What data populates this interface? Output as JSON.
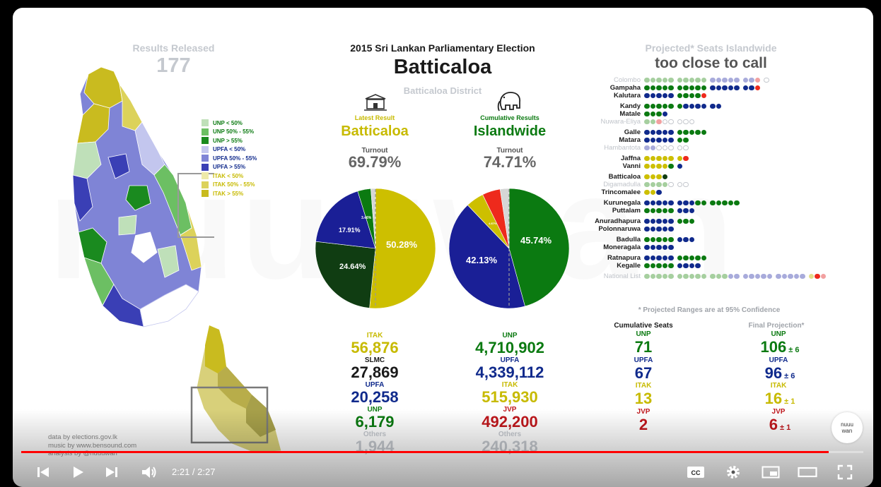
{
  "header": {
    "results_label": "Results Released",
    "results_count": "177",
    "title": "2015 Sri Lankan Parliamentary Election",
    "district": "Batticaloa",
    "district_sub": "Batticaloa District",
    "projected_label": "Projected* Seats Islandwide",
    "projected_status": "too close to call"
  },
  "legend": [
    {
      "label": "UNP < 50%",
      "color": "#bfe0b9",
      "text_color": "#0b7a11"
    },
    {
      "label": "UNP 50% - 55%",
      "color": "#6cbf63",
      "text_color": "#0b7a11"
    },
    {
      "label": "UNP > 55%",
      "color": "#1a8a1f",
      "text_color": "#0b7a11"
    },
    {
      "label": "UPFA < 50%",
      "color": "#c3c6ee",
      "text_color": "#102a8c"
    },
    {
      "label": "UPFA 50% - 55%",
      "color": "#7f84d6",
      "text_color": "#102a8c"
    },
    {
      "label": "UPFA > 55%",
      "color": "#3a3fb5",
      "text_color": "#102a8c"
    },
    {
      "label": "ITAK < 50%",
      "color": "#eeeaa9",
      "text_color": "#c7ba00"
    },
    {
      "label": "ITAK 50% - 55%",
      "color": "#dcd25a",
      "text_color": "#c7ba00"
    },
    {
      "label": "ITAK > 55%",
      "color": "#c9bb1f",
      "text_color": "#c7ba00"
    }
  ],
  "latest": {
    "caption": "Latest Result",
    "name": "Batticaloa",
    "turnout_label": "Turnout",
    "turnout": "69.79%",
    "pie_labels": [
      "50.28%",
      "24.64%",
      "17.91%",
      "3.46%"
    ],
    "slices": [
      {
        "party": "ITAK",
        "share": 50.28,
        "color": "#cdbf00"
      },
      {
        "party": "SLMC",
        "share": 24.64,
        "color": "#103d12"
      },
      {
        "party": "UPFA",
        "share": 17.91,
        "color": "#1a1f96"
      },
      {
        "party": "UNP",
        "share": 3.46,
        "color": "#0b7a11"
      },
      {
        "party": "Others",
        "share": 1.2,
        "color": "#d6d6d6"
      }
    ],
    "results": [
      {
        "party": "ITAK",
        "votes": "56,876",
        "cls": "c-itak"
      },
      {
        "party": "SLMC",
        "votes": "27,869",
        "cls": "c-dark"
      },
      {
        "party": "UPFA",
        "votes": "20,258",
        "cls": "c-upfa"
      },
      {
        "party": "UNP",
        "votes": "6,179",
        "cls": "c-unp"
      },
      {
        "party": "Others",
        "votes": "1,944",
        "cls": "grey"
      }
    ]
  },
  "cumulative": {
    "caption": "Cumulative Results",
    "name": "Islandwide",
    "turnout_label": "Turnout",
    "turnout": "74.71%",
    "pie_labels": [
      "45.74%",
      "42.13%",
      "4.87%"
    ],
    "slices": [
      {
        "party": "UNP",
        "share": 45.74,
        "color": "#0b7a11"
      },
      {
        "party": "UPFA",
        "share": 42.13,
        "color": "#1a1f96"
      },
      {
        "party": "ITAK",
        "share": 4.87,
        "color": "#cdbf00"
      },
      {
        "party": "JVP",
        "share": 4.87,
        "color": "#ee2a1c"
      },
      {
        "party": "Others",
        "share": 2.39,
        "color": "#d6d6d6"
      }
    ],
    "results": [
      {
        "party": "UNP",
        "votes": "4,710,902",
        "cls": "c-unp"
      },
      {
        "party": "UPFA",
        "votes": "4,339,112",
        "cls": "c-upfa"
      },
      {
        "party": "ITAK",
        "votes": "515,930",
        "cls": "c-itak"
      },
      {
        "party": "JVP",
        "votes": "492,200",
        "cls": "c-jvp"
      },
      {
        "party": "Others",
        "votes": "240,318",
        "cls": "grey"
      }
    ]
  },
  "seats": {
    "cumulative_label": "Cumulative Seats",
    "final_label": "Final Projection*",
    "rows": [
      {
        "party": "UNP",
        "seats": "71",
        "proj": "106",
        "pm": "± 6",
        "cls": "c-unp"
      },
      {
        "party": "UPFA",
        "seats": "67",
        "proj": "96",
        "pm": "± 6",
        "cls": "c-upfa"
      },
      {
        "party": "ITAK",
        "seats": "13",
        "proj": "16",
        "pm": "± 1",
        "cls": "c-itak"
      },
      {
        "party": "JVP",
        "seats": "2",
        "proj": "6",
        "pm": "± 1",
        "cls": "c-jvp"
      }
    ]
  },
  "districts": [
    {
      "name": "Colombo",
      "faded": true,
      "dots": "GGGGG GGGGG BBBBB BBp o"
    },
    {
      "name": "Gampaha",
      "dots": "GGGGG GGGGG BBBBB BBr"
    },
    {
      "name": "Kalutara",
      "dots": "BBBBB GGGGr"
    },
    {
      "gap": true
    },
    {
      "name": "Kandy",
      "dots": "GGGGG GBBBB BB"
    },
    {
      "name": "Matale",
      "dots": "GGGB"
    },
    {
      "name": "Nuwara-Eliya",
      "faded": true,
      "dots": "GGpoo ooo"
    },
    {
      "gap": true
    },
    {
      "name": "Galle",
      "dots": "BBBBB GGGGG"
    },
    {
      "name": "Matara",
      "dots": "BBBBB GG"
    },
    {
      "name": "Hambantota",
      "faded": true,
      "dots": "BBooo oo"
    },
    {
      "gap": true
    },
    {
      "name": "Jaffna",
      "dots": "YYYYY Yr"
    },
    {
      "name": "Vanni",
      "dots": "YYYYG B"
    },
    {
      "gap": true
    },
    {
      "name": "Batticaloa",
      "dots": "YYYK"
    },
    {
      "name": "Digamadulla",
      "faded": true,
      "dots": "GGGKo oo"
    },
    {
      "name": "Trincomalee",
      "dots": "YYB"
    },
    {
      "gap": true
    },
    {
      "name": "Kurunegala",
      "dots": "BBBBB BBBGG GGGGG"
    },
    {
      "name": "Puttalam",
      "dots": "GGGGG BBB"
    },
    {
      "gap": true
    },
    {
      "name": "Anuradhapura",
      "dots": "BBBBB GGG"
    },
    {
      "name": "Polonnaruwa",
      "dots": "BBBBB"
    },
    {
      "gap": true
    },
    {
      "name": "Badulla",
      "dots": "GGGGG BBB"
    },
    {
      "name": "Moneragala",
      "dots": "BBBBB"
    },
    {
      "gap": true
    },
    {
      "name": "Ratnapura",
      "dots": "BBBBB GGGGG"
    },
    {
      "name": "Kegalle",
      "dots": "GGGGG BBBB"
    },
    {
      "gap": true
    },
    {
      "name": "National List",
      "faded": true,
      "dots": "ggggg ggggg gggbb bbbbb bbbbb yrp"
    }
  ],
  "footnote": "* Projected Ranges are at 95% Confidence",
  "credits": [
    "data by elections.gov.lk",
    "music by www.bensound.com",
    "analysis by @nuuuwan"
  ],
  "player": {
    "time": "2:21 / 2:27",
    "progress": 0.959,
    "avatar_text": [
      "nuuu",
      "wan"
    ]
  }
}
